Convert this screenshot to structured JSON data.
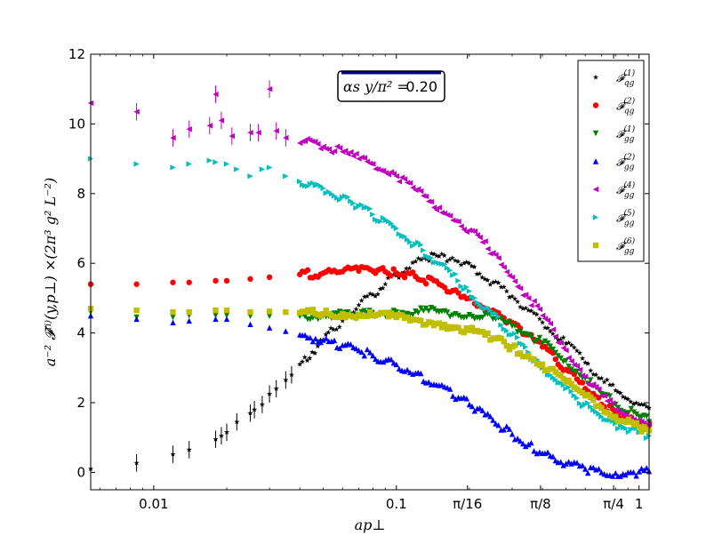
{
  "chart_data": {
    "type": "scatter",
    "title": "",
    "xlabel": "ap⊥",
    "ylabel": "a⁻² 𝓕⁽ⁱ⁾(y,p⊥) ×(2π³ g² L⁻²)",
    "xscale": "log",
    "xlim": [
      0.0055,
      1.1
    ],
    "ylim": [
      -0.5,
      12
    ],
    "x_ticks": [
      {
        "value": 0.01,
        "label": "0.01"
      },
      {
        "value": 0.1,
        "label": "0.1"
      },
      {
        "value": 0.19635,
        "label": "π/16"
      },
      {
        "value": 0.3927,
        "label": "π/8"
      },
      {
        "value": 0.7854,
        "label": "π/4"
      },
      {
        "value": 1.0,
        "label": "1"
      }
    ],
    "y_ticks": [
      {
        "value": 0,
        "label": "0"
      },
      {
        "value": 2,
        "label": "2"
      },
      {
        "value": 4,
        "label": "4"
      },
      {
        "value": 6,
        "label": "6"
      },
      {
        "value": 8,
        "label": "8"
      },
      {
        "value": 10,
        "label": "10"
      },
      {
        "value": 12,
        "label": "12"
      }
    ],
    "annotation": {
      "label": "αs y/π² =",
      "value": "0.20"
    },
    "legend_position": "top-right",
    "series": [
      {
        "name": "F_qg^(1)",
        "label_main": "𝓕",
        "label_sub": "qg",
        "label_sup": "(1)",
        "marker": "star",
        "color": "#000000",
        "points": [
          [
            0.0055,
            0.1
          ],
          [
            0.0085,
            0.27
          ],
          [
            0.012,
            0.52
          ],
          [
            0.014,
            0.65
          ],
          [
            0.018,
            0.95
          ],
          [
            0.019,
            1.05
          ],
          [
            0.02,
            1.15
          ],
          [
            0.022,
            1.45
          ],
          [
            0.025,
            1.7
          ],
          [
            0.026,
            1.8
          ],
          [
            0.028,
            1.95
          ],
          [
            0.03,
            2.25
          ],
          [
            0.032,
            2.4
          ],
          [
            0.035,
            2.65
          ],
          [
            0.037,
            2.8
          ],
          [
            0.04,
            3.1
          ],
          [
            0.045,
            3.45
          ],
          [
            0.05,
            3.8
          ],
          [
            0.055,
            4.1
          ],
          [
            0.06,
            4.35
          ],
          [
            0.065,
            4.55
          ],
          [
            0.07,
            4.8
          ],
          [
            0.08,
            5.1
          ],
          [
            0.09,
            5.4
          ],
          [
            0.1,
            5.65
          ],
          [
            0.11,
            5.85
          ],
          [
            0.12,
            6.05
          ],
          [
            0.13,
            6.15
          ],
          [
            0.15,
            6.2
          ],
          [
            0.17,
            6.15
          ],
          [
            0.19,
            6.0
          ],
          [
            0.22,
            5.7
          ],
          [
            0.25,
            5.45
          ],
          [
            0.3,
            5.05
          ],
          [
            0.35,
            4.65
          ],
          [
            0.4,
            4.3
          ],
          [
            0.5,
            3.7
          ],
          [
            0.6,
            3.15
          ],
          [
            0.7,
            2.7
          ],
          [
            0.8,
            2.35
          ],
          [
            0.9,
            2.1
          ],
          [
            1.0,
            1.95
          ],
          [
            1.1,
            1.85
          ]
        ]
      },
      {
        "name": "F_qg^(2)",
        "label_main": "𝓕",
        "label_sub": "qg",
        "label_sup": "(2)",
        "marker": "circle",
        "color": "#ff0000",
        "points": [
          [
            0.0055,
            5.4
          ],
          [
            0.0085,
            5.4
          ],
          [
            0.012,
            5.45
          ],
          [
            0.014,
            5.45
          ],
          [
            0.018,
            5.5
          ],
          [
            0.02,
            5.5
          ],
          [
            0.025,
            5.55
          ],
          [
            0.03,
            5.6
          ],
          [
            0.04,
            5.68
          ],
          [
            0.05,
            5.72
          ],
          [
            0.06,
            5.76
          ],
          [
            0.07,
            5.78
          ],
          [
            0.08,
            5.78
          ],
          [
            0.09,
            5.76
          ],
          [
            0.1,
            5.72
          ],
          [
            0.12,
            5.62
          ],
          [
            0.15,
            5.4
          ],
          [
            0.18,
            5.15
          ],
          [
            0.2,
            5.0
          ],
          [
            0.25,
            4.65
          ],
          [
            0.3,
            4.3
          ],
          [
            0.35,
            3.95
          ],
          [
            0.4,
            3.6
          ],
          [
            0.5,
            2.95
          ],
          [
            0.6,
            2.4
          ],
          [
            0.7,
            1.95
          ],
          [
            0.8,
            1.7
          ],
          [
            1.0,
            1.4
          ],
          [
            1.1,
            1.35
          ]
        ]
      },
      {
        "name": "F_gg^(1)",
        "label_main": "𝓕",
        "label_sub": "gg",
        "label_sup": "(1)",
        "marker": "triangle-down",
        "color": "#007f00",
        "points": [
          [
            0.0055,
            4.6
          ],
          [
            0.0085,
            4.45
          ],
          [
            0.012,
            4.45
          ],
          [
            0.014,
            4.5
          ],
          [
            0.018,
            4.5
          ],
          [
            0.02,
            4.5
          ],
          [
            0.025,
            4.48
          ],
          [
            0.03,
            4.48
          ],
          [
            0.04,
            4.48
          ],
          [
            0.05,
            4.5
          ],
          [
            0.07,
            4.52
          ],
          [
            0.1,
            4.6
          ],
          [
            0.12,
            4.62
          ],
          [
            0.15,
            4.6
          ],
          [
            0.2,
            4.52
          ],
          [
            0.25,
            4.4
          ],
          [
            0.3,
            4.2
          ],
          [
            0.35,
            3.95
          ],
          [
            0.4,
            3.7
          ],
          [
            0.5,
            3.2
          ],
          [
            0.6,
            2.7
          ],
          [
            0.7,
            2.25
          ],
          [
            0.8,
            1.95
          ],
          [
            1.0,
            1.6
          ],
          [
            1.1,
            1.45
          ]
        ]
      },
      {
        "name": "F_gg^(2)",
        "label_main": "𝓕",
        "label_sub": "gg",
        "label_sup": "(2)",
        "marker": "triangle-up",
        "color": "#0000ff",
        "points": [
          [
            0.0055,
            4.5
          ],
          [
            0.0085,
            4.4
          ],
          [
            0.012,
            4.3
          ],
          [
            0.014,
            4.35
          ],
          [
            0.018,
            4.4
          ],
          [
            0.02,
            4.4
          ],
          [
            0.025,
            4.25
          ],
          [
            0.03,
            4.15
          ],
          [
            0.035,
            4.05
          ],
          [
            0.04,
            3.95
          ],
          [
            0.05,
            3.8
          ],
          [
            0.06,
            3.65
          ],
          [
            0.07,
            3.5
          ],
          [
            0.08,
            3.35
          ],
          [
            0.1,
            3.1
          ],
          [
            0.12,
            2.85
          ],
          [
            0.15,
            2.5
          ],
          [
            0.18,
            2.15
          ],
          [
            0.2,
            1.95
          ],
          [
            0.25,
            1.5
          ],
          [
            0.3,
            1.1
          ],
          [
            0.35,
            0.8
          ],
          [
            0.4,
            0.55
          ],
          [
            0.5,
            0.25
          ],
          [
            0.6,
            0.1
          ],
          [
            0.7,
            0.0
          ],
          [
            0.8,
            -0.02
          ],
          [
            0.9,
            0.0
          ],
          [
            1.0,
            0.02
          ],
          [
            1.1,
            0.03
          ]
        ]
      },
      {
        "name": "F_gg^(4)",
        "label_main": "𝓕",
        "label_sub": "gg",
        "label_sup": "(4)",
        "marker": "triangle-left",
        "color": "#bf00bf",
        "points": [
          [
            0.0055,
            10.6
          ],
          [
            0.0085,
            10.35
          ],
          [
            0.012,
            9.6
          ],
          [
            0.014,
            9.85
          ],
          [
            0.017,
            9.95
          ],
          [
            0.018,
            10.85
          ],
          [
            0.019,
            10.1
          ],
          [
            0.021,
            9.65
          ],
          [
            0.025,
            9.75
          ],
          [
            0.027,
            9.75
          ],
          [
            0.03,
            11.0
          ],
          [
            0.032,
            9.8
          ],
          [
            0.035,
            9.6
          ],
          [
            0.04,
            9.45
          ],
          [
            0.045,
            9.5
          ],
          [
            0.05,
            9.35
          ],
          [
            0.06,
            9.2
          ],
          [
            0.07,
            9.0
          ],
          [
            0.08,
            8.85
          ],
          [
            0.1,
            8.5
          ],
          [
            0.12,
            8.1
          ],
          [
            0.15,
            7.6
          ],
          [
            0.18,
            7.2
          ],
          [
            0.2,
            6.95
          ],
          [
            0.25,
            6.3
          ],
          [
            0.3,
            5.6
          ],
          [
            0.35,
            5.0
          ],
          [
            0.4,
            4.5
          ],
          [
            0.5,
            3.5
          ],
          [
            0.6,
            2.75
          ],
          [
            0.7,
            2.2
          ],
          [
            0.8,
            1.8
          ],
          [
            1.0,
            1.5
          ],
          [
            1.1,
            1.4
          ]
        ]
      },
      {
        "name": "F_gg^(5)",
        "label_main": "𝓕",
        "label_sub": "gg",
        "label_sup": "(5)",
        "marker": "triangle-right",
        "color": "#00bfbf",
        "points": [
          [
            0.0055,
            9.0
          ],
          [
            0.0085,
            8.85
          ],
          [
            0.012,
            8.75
          ],
          [
            0.014,
            8.85
          ],
          [
            0.017,
            8.95
          ],
          [
            0.018,
            8.9
          ],
          [
            0.02,
            8.85
          ],
          [
            0.022,
            8.7
          ],
          [
            0.025,
            8.5
          ],
          [
            0.028,
            8.7
          ],
          [
            0.03,
            8.75
          ],
          [
            0.035,
            8.5
          ],
          [
            0.04,
            8.35
          ],
          [
            0.05,
            8.15
          ],
          [
            0.06,
            7.9
          ],
          [
            0.07,
            7.65
          ],
          [
            0.08,
            7.4
          ],
          [
            0.1,
            7.0
          ],
          [
            0.12,
            6.55
          ],
          [
            0.15,
            6.0
          ],
          [
            0.18,
            5.5
          ],
          [
            0.2,
            5.2
          ],
          [
            0.25,
            4.55
          ],
          [
            0.3,
            3.95
          ],
          [
            0.35,
            3.45
          ],
          [
            0.4,
            3.0
          ],
          [
            0.5,
            2.4
          ],
          [
            0.6,
            1.95
          ],
          [
            0.7,
            1.6
          ],
          [
            0.8,
            1.4
          ],
          [
            1.0,
            1.15
          ],
          [
            1.1,
            1.05
          ]
        ]
      },
      {
        "name": "F_gg^(6)",
        "label_main": "𝓕",
        "label_sub": "gg",
        "label_sup": "(6)",
        "marker": "square",
        "color": "#bfbf00",
        "points": [
          [
            0.0055,
            4.7
          ],
          [
            0.0085,
            4.65
          ],
          [
            0.012,
            4.6
          ],
          [
            0.014,
            4.6
          ],
          [
            0.018,
            4.65
          ],
          [
            0.02,
            4.65
          ],
          [
            0.025,
            4.6
          ],
          [
            0.03,
            4.62
          ],
          [
            0.035,
            4.6
          ],
          [
            0.04,
            4.58
          ],
          [
            0.05,
            4.55
          ],
          [
            0.06,
            4.55
          ],
          [
            0.07,
            4.53
          ],
          [
            0.08,
            4.5
          ],
          [
            0.1,
            4.45
          ],
          [
            0.12,
            4.38
          ],
          [
            0.15,
            4.28
          ],
          [
            0.18,
            4.15
          ],
          [
            0.2,
            4.08
          ],
          [
            0.25,
            3.85
          ],
          [
            0.3,
            3.6
          ],
          [
            0.35,
            3.35
          ],
          [
            0.4,
            3.1
          ],
          [
            0.5,
            2.6
          ],
          [
            0.6,
            2.2
          ],
          [
            0.7,
            1.85
          ],
          [
            0.8,
            1.6
          ],
          [
            1.0,
            1.3
          ],
          [
            1.1,
            1.2
          ]
        ]
      }
    ]
  }
}
